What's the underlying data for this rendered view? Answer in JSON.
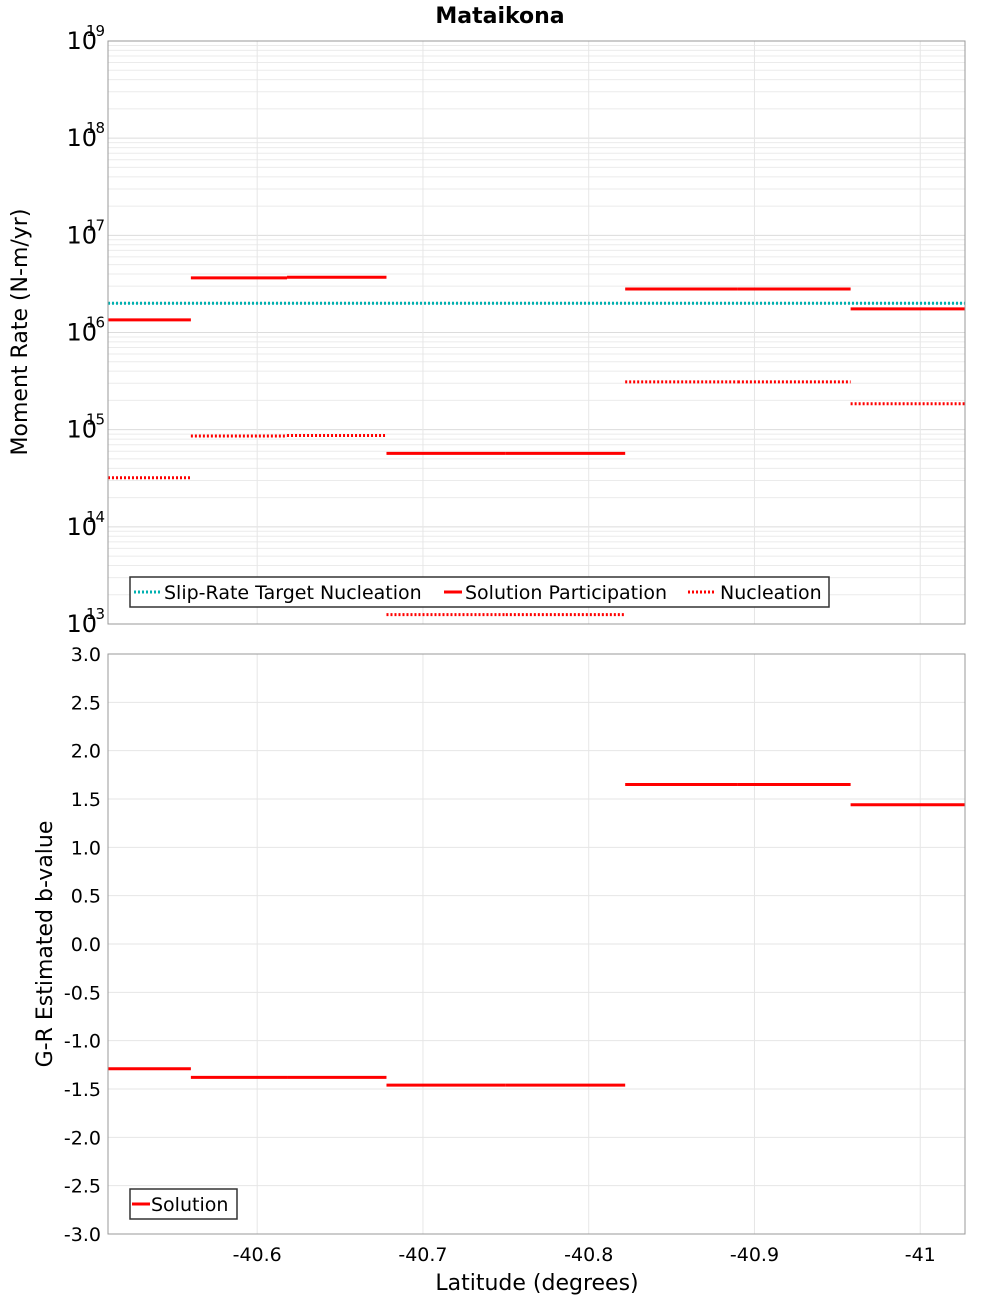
{
  "chart_data": {
    "title": "Mataikona",
    "xlabel": "Latitude (degrees)",
    "x_axis": {
      "range": [
        -40.51,
        -41.027
      ],
      "ticks": [
        -40.6,
        -40.7,
        -40.8,
        -40.9,
        -41.0
      ],
      "tick_labels": [
        "-40.6",
        "-40.7",
        "-40.8",
        "-40.9",
        "-41"
      ]
    },
    "panels": [
      {
        "name": "moment-rate",
        "type": "line",
        "scale": "log",
        "ylabel": "Moment Rate (N-m/yr)",
        "ylim": [
          10000000000000.0,
          1e+19
        ],
        "y_ticks": [
          {
            "value": 10000000000000.0,
            "base": "10",
            "exp": "13"
          },
          {
            "value": 100000000000000.0,
            "base": "10",
            "exp": "14"
          },
          {
            "value": 1000000000000000.0,
            "base": "10",
            "exp": "15"
          },
          {
            "value": 1e+16,
            "base": "10",
            "exp": "16"
          },
          {
            "value": 1e+17,
            "base": "10",
            "exp": "17"
          },
          {
            "value": 1e+18,
            "base": "10",
            "exp": "18"
          },
          {
            "value": 1e+19,
            "base": "10",
            "exp": "19"
          }
        ],
        "legend": [
          "Slip-Rate Target Nucleation",
          "Solution Participation",
          "Nucleation"
        ],
        "series": [
          {
            "name": "Slip-Rate Target Nucleation",
            "color": "#00b0b0",
            "style": "dotted",
            "segments": [
              {
                "x0": -40.51,
                "x1": -41.027,
                "y": 2e+16
              }
            ]
          },
          {
            "name": "Solution Participation",
            "color": "#ff0000",
            "style": "solid",
            "segments": [
              {
                "x0": -40.51,
                "x1": -40.56,
                "y": 1.35e+16
              },
              {
                "x0": -40.56,
                "x1": -40.618,
                "y": 3.65e+16
              },
              {
                "x0": -40.618,
                "x1": -40.678,
                "y": 3.7e+16
              },
              {
                "x0": -40.678,
                "x1": -40.75,
                "y": 570000000000000.0
              },
              {
                "x0": -40.75,
                "x1": -40.822,
                "y": 570000000000000.0
              },
              {
                "x0": -40.822,
                "x1": -40.89,
                "y": 2.8e+16
              },
              {
                "x0": -40.89,
                "x1": -40.958,
                "y": 2.8e+16
              },
              {
                "x0": -40.958,
                "x1": -41.027,
                "y": 1.75e+16
              }
            ]
          },
          {
            "name": "Nucleation",
            "color": "#ff0000",
            "style": "dotted",
            "segments": [
              {
                "x0": -40.51,
                "x1": -40.56,
                "y": 320000000000000.0
              },
              {
                "x0": -40.56,
                "x1": -40.618,
                "y": 860000000000000.0
              },
              {
                "x0": -40.618,
                "x1": -40.678,
                "y": 870000000000000.0
              },
              {
                "x0": -40.678,
                "x1": -40.75,
                "y": 12500000000000.0
              },
              {
                "x0": -40.75,
                "x1": -40.822,
                "y": 12500000000000.0
              },
              {
                "x0": -40.822,
                "x1": -40.89,
                "y": 3100000000000000.0
              },
              {
                "x0": -40.89,
                "x1": -40.958,
                "y": 3100000000000000.0
              },
              {
                "x0": -40.958,
                "x1": -41.027,
                "y": 1850000000000000.0
              }
            ]
          }
        ]
      },
      {
        "name": "b-value",
        "type": "line",
        "scale": "linear",
        "ylabel": "G-R Estimated b-value",
        "ylim": [
          -3.0,
          3.0
        ],
        "y_ticks": [
          {
            "value": 3.0,
            "label": "3.0"
          },
          {
            "value": 2.5,
            "label": "2.5"
          },
          {
            "value": 2.0,
            "label": "2.0"
          },
          {
            "value": 1.5,
            "label": "1.5"
          },
          {
            "value": 1.0,
            "label": "1.0"
          },
          {
            "value": 0.5,
            "label": "0.5"
          },
          {
            "value": 0.0,
            "label": "0.0"
          },
          {
            "value": -0.5,
            "label": "-0.5"
          },
          {
            "value": -1.0,
            "label": "-1.0"
          },
          {
            "value": -1.5,
            "label": "-1.5"
          },
          {
            "value": -2.0,
            "label": "-2.0"
          },
          {
            "value": -2.5,
            "label": "-2.5"
          },
          {
            "value": -3.0,
            "label": "-3.0"
          }
        ],
        "legend": [
          "Solution"
        ],
        "series": [
          {
            "name": "Solution",
            "color": "#ff0000",
            "style": "solid",
            "segments": [
              {
                "x0": -40.51,
                "x1": -40.56,
                "y": -1.29
              },
              {
                "x0": -40.56,
                "x1": -40.618,
                "y": -1.38
              },
              {
                "x0": -40.618,
                "x1": -40.678,
                "y": -1.38
              },
              {
                "x0": -40.678,
                "x1": -40.75,
                "y": -1.46
              },
              {
                "x0": -40.75,
                "x1": -40.822,
                "y": -1.46
              },
              {
                "x0": -40.822,
                "x1": -40.89,
                "y": 1.65
              },
              {
                "x0": -40.89,
                "x1": -40.958,
                "y": 1.65
              },
              {
                "x0": -40.958,
                "x1": -41.027,
                "y": 1.44
              }
            ]
          }
        ]
      }
    ]
  }
}
